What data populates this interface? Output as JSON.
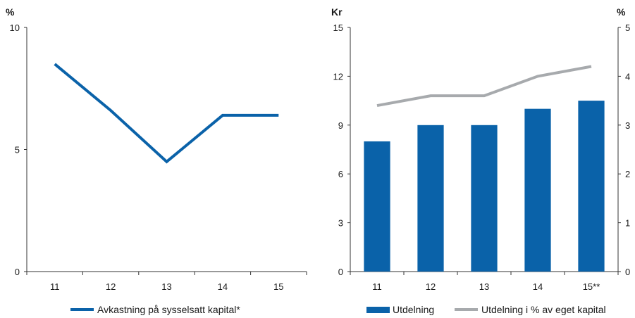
{
  "chart_data": [
    {
      "type": "line",
      "ylabel": "%",
      "ylim": [
        0,
        10
      ],
      "yticks": [
        "0",
        "5",
        "10"
      ],
      "categories": [
        "11",
        "12",
        "13",
        "14",
        "15"
      ],
      "series": [
        {
          "name": "Avkastning på sysselsatt kapital*",
          "color": "#0a62a9",
          "values": [
            8.5,
            6.6,
            4.5,
            6.4,
            6.4
          ]
        }
      ],
      "legend": "bottom",
      "grid": false
    },
    {
      "type": "bar",
      "ylabel": "Kr",
      "y2label": "%",
      "ylim": [
        0,
        15
      ],
      "y2lim": [
        0,
        5
      ],
      "yticks": [
        "0",
        "3",
        "6",
        "9",
        "12",
        "15"
      ],
      "y2ticks": [
        "0",
        "1",
        "2",
        "3",
        "4",
        "5"
      ],
      "categories": [
        "11",
        "12",
        "13",
        "14",
        "15**"
      ],
      "series": [
        {
          "name": "Utdelning",
          "kind": "bar",
          "axis": "left",
          "color": "#0a62a9",
          "values": [
            8.0,
            9.0,
            9.0,
            10.0,
            10.5
          ]
        },
        {
          "name": "Utdelning i % av eget kapital",
          "kind": "line",
          "axis": "right",
          "color": "#a7aaad",
          "values": [
            3.4,
            3.6,
            3.6,
            4.0,
            4.2
          ]
        }
      ],
      "legend": "bottom",
      "grid": false
    }
  ]
}
